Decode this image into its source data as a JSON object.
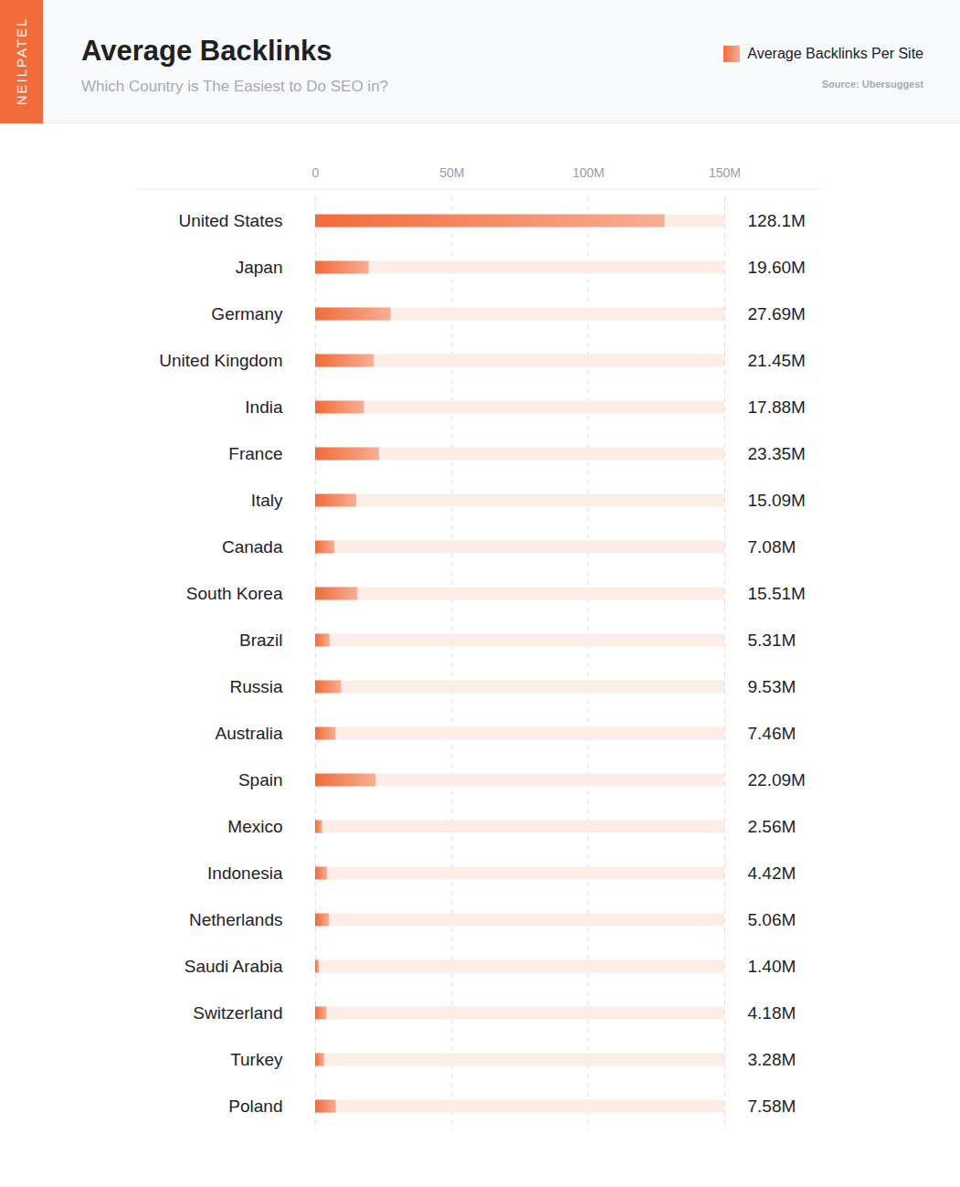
{
  "chart_data": {
    "type": "bar",
    "orientation": "horizontal",
    "brand": "NEILPATEL",
    "title": "Average Backlinks",
    "subtitle": "Which Country is The Easiest to Do SEO in?",
    "source": "Source: Ubersuggest",
    "legend": "top-right",
    "categories": [
      "United States",
      "Japan",
      "Germany",
      "United Kingdom",
      "India",
      "France",
      "Italy",
      "Canada",
      "South Korea",
      "Brazil",
      "Russia",
      "Australia",
      "Spain",
      "Mexico",
      "Indonesia",
      "Netherlands",
      "Saudi Arabia",
      "Switzerland",
      "Turkey",
      "Poland"
    ],
    "series": [
      {
        "name": "Average Backlinks Per Site",
        "color": "#f26b3a",
        "values": [
          128.1,
          19.6,
          27.69,
          21.45,
          17.88,
          23.35,
          15.09,
          7.08,
          15.51,
          5.31,
          9.53,
          7.46,
          22.09,
          2.56,
          4.42,
          5.06,
          1.4,
          4.18,
          3.28,
          7.58
        ],
        "value_labels": [
          "128.1M",
          "19.60M",
          "27.69M",
          "21.45M",
          "17.88M",
          "23.35M",
          "15.09M",
          "7.08M",
          "15.51M",
          "5.31M",
          "9.53M",
          "7.46M",
          "22.09M",
          "2.56M",
          "4.42M",
          "5.06M",
          "1.40M",
          "4.18M",
          "3.28M",
          "7.58M"
        ]
      }
    ],
    "xlim": [
      0,
      150
    ],
    "xticks": [
      0,
      {
        "value": 50,
        "label": "50M"
      },
      {
        "value": 100,
        "label": "100M"
      },
      {
        "value": 150,
        "label": "150M"
      }
    ],
    "grid": true,
    "data_labels": true
  }
}
